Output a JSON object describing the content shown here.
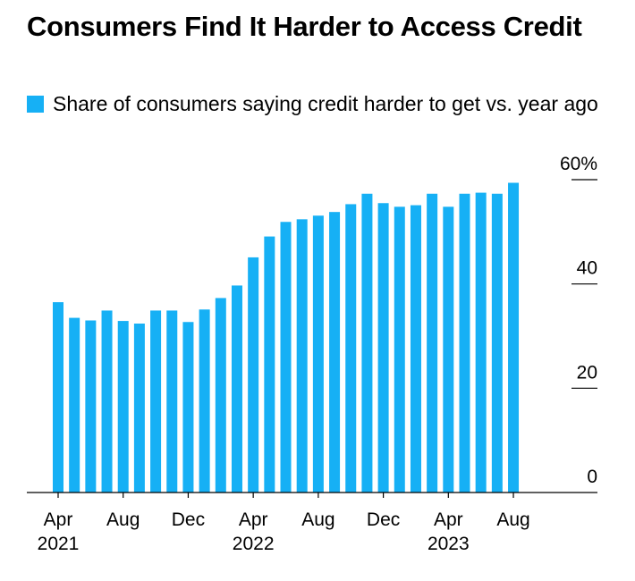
{
  "chart_data": {
    "type": "bar",
    "title": "Consumers Find It Harder to Access Credit",
    "legend": [
      {
        "label": "Share of consumers saying credit harder to get vs. year ago",
        "color": "#16b0f5"
      }
    ],
    "series": [
      {
        "name": "Share of consumers saying credit harder to get vs. year ago",
        "color": "#16b0f5",
        "values": [
          36.5,
          33.5,
          33,
          34.9,
          32.9,
          32.4,
          34.9,
          34.9,
          32.7,
          35.1,
          37.3,
          39.7,
          45.1,
          49.1,
          51.9,
          52.4,
          53.1,
          53.8,
          55.3,
          57.3,
          55.5,
          54.8,
          55.1,
          57.3,
          54.8,
          57.3,
          57.5,
          57.3,
          59.4
        ]
      }
    ],
    "categories": [
      "Apr 2021",
      "May 2021",
      "Jun 2021",
      "Jul 2021",
      "Aug 2021",
      "Sep 2021",
      "Oct 2021",
      "Nov 2021",
      "Dec 2021",
      "Jan 2022",
      "Feb 2022",
      "Mar 2022",
      "Apr 2022",
      "May 2022",
      "Jun 2022",
      "Jul 2022",
      "Aug 2022",
      "Sep 2022",
      "Oct 2022",
      "Nov 2022",
      "Dec 2022",
      "Jan 2023",
      "Feb 2023",
      "Mar 2023",
      "Apr 2023",
      "May 2023",
      "Jun 2023",
      "Jul 2023",
      "Aug 2023"
    ],
    "x_ticks": [
      {
        "index": 0,
        "month": "Apr",
        "year": "2021"
      },
      {
        "index": 4,
        "month": "Aug",
        "year": ""
      },
      {
        "index": 8,
        "month": "Dec",
        "year": ""
      },
      {
        "index": 12,
        "month": "Apr",
        "year": "2022"
      },
      {
        "index": 16,
        "month": "Aug",
        "year": ""
      },
      {
        "index": 20,
        "month": "Dec",
        "year": ""
      },
      {
        "index": 24,
        "month": "Apr",
        "year": "2023"
      },
      {
        "index": 28,
        "month": "Aug",
        "year": ""
      }
    ],
    "y_ticks": [
      {
        "value": 0,
        "label": "0"
      },
      {
        "value": 20,
        "label": "20"
      },
      {
        "value": 40,
        "label": "40"
      },
      {
        "value": 60,
        "label": "60%"
      }
    ],
    "ylim": [
      0,
      60
    ],
    "xlabel": "",
    "ylabel": "",
    "grid": false,
    "legend_position": "top-left"
  }
}
